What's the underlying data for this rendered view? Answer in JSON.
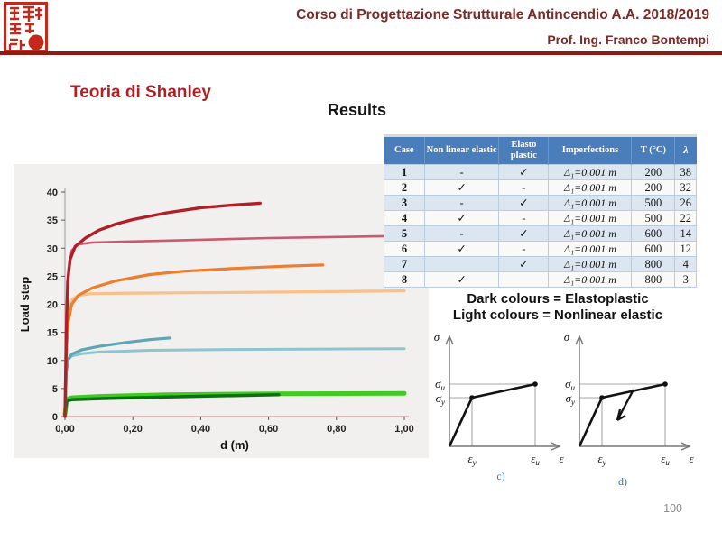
{
  "header": {
    "course": "Corso di Progettazione Strutturale Antincendio A.A. 2018/2019",
    "professor": "Prof. Ing. Franco Bontempi"
  },
  "slide": {
    "title": "Teoria di Shanley",
    "subtitle": "Results",
    "page": "100"
  },
  "colors": {
    "header_text": "#7b2a26",
    "header_rule": "#8e1b14",
    "slide_title": "#ae1f24",
    "table_header_bg": "#4a7ebb",
    "table_row_alt_bg": "#dce6f1",
    "chart_panel_bg": "#f1f0ee",
    "chart_x_axis": "#dba4a4",
    "seal_red": "#c5291c",
    "diagram_caption_blue": "#2e74b5"
  },
  "table": {
    "headers": [
      "Case",
      "Non linear elastic",
      "Elasto plastic",
      "Imperfections",
      "T (°C)",
      "λ"
    ],
    "rows": [
      [
        "1",
        "-",
        "✓",
        "Δ₁=0.001 m",
        "200",
        "38"
      ],
      [
        "2",
        "✓",
        "-",
        "Δ₁=0.001 m",
        "200",
        "32"
      ],
      [
        "3",
        "-",
        "✓",
        "Δ₁=0.001 m",
        "500",
        "26"
      ],
      [
        "4",
        "✓",
        "-",
        "Δ₁=0.001 m",
        "500",
        "22"
      ],
      [
        "5",
        "-",
        "✓",
        "Δ₁=0.001 m",
        "600",
        "14"
      ],
      [
        "6",
        "✓",
        "-",
        "Δ₁=0.001 m",
        "600",
        "12"
      ],
      [
        "7",
        "",
        "✓",
        "Δ₁=0.001 m",
        "800",
        "4"
      ],
      [
        "8",
        "✓",
        "",
        "Δ₁=0.001 m",
        "800",
        "3"
      ]
    ]
  },
  "legend": {
    "line1": "Dark colours = Elastoplastic",
    "line2": "Light colours = Nonlinear elastic"
  },
  "chart_data": {
    "type": "line",
    "title": "",
    "xlabel": "d (m)",
    "ylabel": "Load step",
    "xlim": [
      0,
      1.0
    ],
    "ylim": [
      0,
      40
    ],
    "grid": false,
    "legend_position": "none",
    "xticks": [
      {
        "v": 0.0,
        "label": "0,00"
      },
      {
        "v": 0.2,
        "label": "0,20"
      },
      {
        "v": 0.4,
        "label": "0,40"
      },
      {
        "v": 0.6,
        "label": "0,60"
      },
      {
        "v": 0.8,
        "label": "0,80"
      },
      {
        "v": 1.0,
        "label": "1,00"
      }
    ],
    "yticks": [
      0,
      5,
      10,
      15,
      20,
      25,
      30,
      35,
      40
    ],
    "series": [
      {
        "name": "light green",
        "color": "#3fcc21",
        "width": 5,
        "points": [
          [
            0,
            0.4
          ],
          [
            0.005,
            3.1
          ],
          [
            0.02,
            3.35
          ],
          [
            0.1,
            3.6
          ],
          [
            0.3,
            3.9
          ],
          [
            0.6,
            4.05
          ],
          [
            1.0,
            4.15
          ]
        ]
      },
      {
        "name": "dark green",
        "color": "#0e6f10",
        "width": 3.5,
        "points": [
          [
            0,
            0.3
          ],
          [
            0.005,
            2.8
          ],
          [
            0.02,
            3.0
          ],
          [
            0.1,
            3.2
          ],
          [
            0.3,
            3.5
          ],
          [
            0.5,
            3.75
          ],
          [
            0.63,
            3.9
          ]
        ]
      },
      {
        "name": "light teal",
        "color": "#8ec4cd",
        "width": 3,
        "points": [
          [
            0,
            0
          ],
          [
            0.004,
            8.5
          ],
          [
            0.01,
            10.2
          ],
          [
            0.02,
            10.8
          ],
          [
            0.05,
            11.2
          ],
          [
            0.1,
            11.5
          ],
          [
            0.25,
            11.8
          ],
          [
            0.5,
            11.95
          ],
          [
            1.0,
            12.1
          ]
        ]
      },
      {
        "name": "dark teal",
        "color": "#5fa5b5",
        "width": 3.2,
        "points": [
          [
            0,
            0
          ],
          [
            0.004,
            8.0
          ],
          [
            0.01,
            10.3
          ],
          [
            0.02,
            11.1
          ],
          [
            0.05,
            11.9
          ],
          [
            0.1,
            12.5
          ],
          [
            0.18,
            13.2
          ],
          [
            0.25,
            13.7
          ],
          [
            0.31,
            14.0
          ]
        ]
      },
      {
        "name": "light orange",
        "color": "#f9c08a",
        "width": 3.2,
        "points": [
          [
            0,
            0
          ],
          [
            0.004,
            14
          ],
          [
            0.01,
            18.5
          ],
          [
            0.02,
            20.8
          ],
          [
            0.04,
            21.6
          ],
          [
            0.08,
            21.9
          ],
          [
            0.2,
            22.0
          ],
          [
            0.5,
            22.1
          ],
          [
            0.75,
            22.25
          ],
          [
            1.0,
            22.4
          ]
        ]
      },
      {
        "name": "orange",
        "color": "#ee7d2c",
        "width": 3.2,
        "points": [
          [
            0,
            0
          ],
          [
            0.004,
            12
          ],
          [
            0.01,
            17
          ],
          [
            0.02,
            20
          ],
          [
            0.04,
            21.6
          ],
          [
            0.08,
            22.9
          ],
          [
            0.15,
            24.2
          ],
          [
            0.25,
            25.3
          ],
          [
            0.35,
            25.9
          ],
          [
            0.5,
            26.4
          ],
          [
            0.65,
            26.8
          ],
          [
            0.76,
            27.0
          ]
        ]
      },
      {
        "name": "rose",
        "color": "#c9596f",
        "width": 2.6,
        "points": [
          [
            0,
            0
          ],
          [
            0.004,
            18
          ],
          [
            0.01,
            26
          ],
          [
            0.02,
            29.6
          ],
          [
            0.04,
            30.7
          ],
          [
            0.08,
            31.0
          ],
          [
            0.2,
            31.2
          ],
          [
            0.4,
            31.5
          ],
          [
            0.6,
            31.8
          ],
          [
            0.8,
            32.0
          ],
          [
            1.0,
            32.2
          ]
        ]
      },
      {
        "name": "dark red",
        "color": "#b01e28",
        "width": 3.4,
        "points": [
          [
            0,
            0
          ],
          [
            0.004,
            15
          ],
          [
            0.008,
            24
          ],
          [
            0.015,
            28
          ],
          [
            0.03,
            30.3
          ],
          [
            0.06,
            31.8
          ],
          [
            0.1,
            33.2
          ],
          [
            0.15,
            34.3
          ],
          [
            0.2,
            35.1
          ],
          [
            0.3,
            36.3
          ],
          [
            0.4,
            37.2
          ],
          [
            0.5,
            37.7
          ],
          [
            0.575,
            38.0
          ]
        ]
      }
    ]
  },
  "diagrams": {
    "sigma": "σ",
    "sigma_u": "σ_u",
    "sigma_y": "σ_y",
    "eps_y": "ε_y",
    "eps_u": "ε_u",
    "eps": "ε",
    "caption_c": "c)",
    "caption_d": "d)"
  }
}
